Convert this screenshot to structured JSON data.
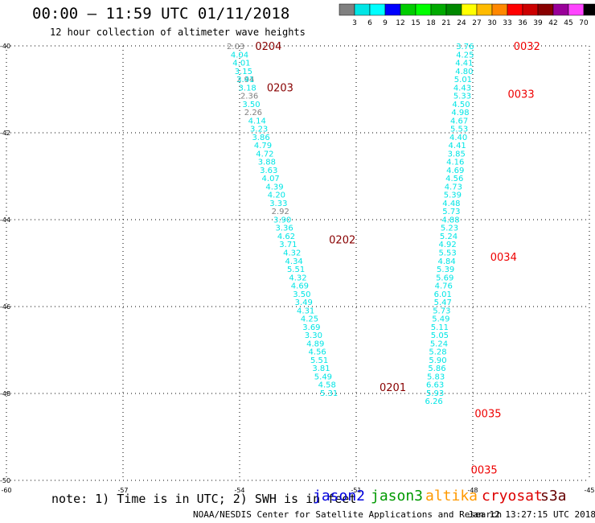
{
  "header": {
    "title": "00:00 – 11:59 UTC 01/11/2018",
    "subtitle": "12 hour collection of altimeter wave heights"
  },
  "colorbar": {
    "unit": "(ft)",
    "bins": [
      {
        "label": "",
        "color": "#808080"
      },
      {
        "label": "3",
        "color": "#00e5e5"
      },
      {
        "label": "6",
        "color": "#00ffff"
      },
      {
        "label": "9",
        "color": "#0000ff"
      },
      {
        "label": "12",
        "color": "#00cc00"
      },
      {
        "label": "15",
        "color": "#00ff00"
      },
      {
        "label": "18",
        "color": "#00aa00"
      },
      {
        "label": "21",
        "color": "#008800"
      },
      {
        "label": "24",
        "color": "#ffff00"
      },
      {
        "label": "27",
        "color": "#ffbb00"
      },
      {
        "label": "30",
        "color": "#ff8800"
      },
      {
        "label": "33",
        "color": "#ff0000"
      },
      {
        "label": "36",
        "color": "#cc0000"
      },
      {
        "label": "39",
        "color": "#880000"
      },
      {
        "label": "42",
        "color": "#990099"
      },
      {
        "label": "45",
        "color": "#ff44ff"
      },
      {
        "label": "70",
        "color": "#000000"
      }
    ]
  },
  "footer": {
    "note": "note: 1) Time is in UTC; 2) SWH is in feet",
    "satellites": [
      {
        "name": "jason2",
        "color": "#0000dd"
      },
      {
        "name": "jason3",
        "color": "#009900"
      },
      {
        "name": "altika",
        "color": "#ff9900"
      },
      {
        "name": "cryosat",
        "color": "#dd0000"
      },
      {
        "name": "s3a",
        "color": "#660000"
      }
    ],
    "credit": "NOAA/NESDIS Center for Satellite Applications and Research",
    "timestamp": "Jan 12 13:27:15 UTC 2018"
  },
  "colors": {
    "cyan": "#00e5e5",
    "gray": "#808080",
    "red": "#ee0000",
    "darkred": "#880000"
  },
  "chart_data": {
    "type": "scatter",
    "title": "00:00 – 11:59 UTC 01/11/2018",
    "subtitle": "12 hour collection of altimeter wave heights",
    "xlim": [
      -60,
      -45
    ],
    "ylim": [
      -50,
      -40
    ],
    "xticks": [
      -60,
      -57,
      -54,
      -51,
      -48,
      -45
    ],
    "yticks": [
      -40,
      -42,
      -44,
      -46,
      -48,
      -50
    ],
    "x_tick_labels": [
      "-60",
      "-57",
      "-54",
      "-51",
      "-48",
      "-45"
    ],
    "y_tick_labels": [
      "-40",
      "-42",
      "-44",
      "-46",
      "-48",
      "-50"
    ],
    "grid": "dotted",
    "series": [
      {
        "points": [
          {
            "x": -54.1,
            "y": -40.0,
            "v": "2.03",
            "c": "gray"
          },
          {
            "x": -54.0,
            "y": -40.19,
            "v": "4.04",
            "c": "cyan"
          },
          {
            "x": -53.95,
            "y": -40.38,
            "v": "4.01",
            "c": "cyan"
          },
          {
            "x": -53.9,
            "y": -40.57,
            "v": "3.15",
            "c": "cyan"
          },
          {
            "x": -53.85,
            "y": -40.76,
            "v": "2.94",
            "c": "gray"
          },
          {
            "x": -53.85,
            "y": -40.76,
            "v": "3.41",
            "c": "cyan"
          },
          {
            "x": -53.8,
            "y": -40.95,
            "v": "3.18",
            "c": "cyan"
          },
          {
            "x": -53.75,
            "y": -41.14,
            "v": "2.36",
            "c": "gray"
          },
          {
            "x": -53.7,
            "y": -41.33,
            "v": "3.50",
            "c": "cyan"
          },
          {
            "x": -53.65,
            "y": -41.52,
            "v": "2.26",
            "c": "gray"
          },
          {
            "x": -53.55,
            "y": -41.71,
            "v": "4.14",
            "c": "cyan"
          },
          {
            "x": -53.5,
            "y": -41.9,
            "v": "3.23",
            "c": "cyan"
          },
          {
            "x": -53.45,
            "y": -42.09,
            "v": "3.86",
            "c": "cyan"
          },
          {
            "x": -53.4,
            "y": -42.28,
            "v": "4.79",
            "c": "cyan"
          },
          {
            "x": -53.35,
            "y": -42.47,
            "v": "4.72",
            "c": "cyan"
          },
          {
            "x": -53.3,
            "y": -42.66,
            "v": "3.88",
            "c": "cyan"
          },
          {
            "x": -53.25,
            "y": -42.85,
            "v": "3.63",
            "c": "cyan"
          },
          {
            "x": -53.2,
            "y": -43.04,
            "v": "4.07",
            "c": "cyan"
          },
          {
            "x": -53.1,
            "y": -43.23,
            "v": "4.39",
            "c": "cyan"
          },
          {
            "x": -53.05,
            "y": -43.42,
            "v": "4.20",
            "c": "cyan"
          },
          {
            "x": -53.0,
            "y": -43.61,
            "v": "3.33",
            "c": "cyan"
          },
          {
            "x": -52.95,
            "y": -43.8,
            "v": "2.92",
            "c": "gray"
          },
          {
            "x": -52.9,
            "y": -43.99,
            "v": "3.90",
            "c": "cyan"
          },
          {
            "x": -52.85,
            "y": -44.18,
            "v": "3.36",
            "c": "cyan"
          },
          {
            "x": -52.8,
            "y": -44.37,
            "v": "4.62",
            "c": "cyan"
          },
          {
            "x": -52.75,
            "y": -44.56,
            "v": "3.71",
            "c": "cyan"
          },
          {
            "x": -52.65,
            "y": -44.75,
            "v": "4.32",
            "c": "cyan"
          },
          {
            "x": -52.6,
            "y": -44.94,
            "v": "4.34",
            "c": "cyan"
          },
          {
            "x": -52.55,
            "y": -45.13,
            "v": "5.51",
            "c": "cyan"
          },
          {
            "x": -52.5,
            "y": -45.32,
            "v": "4.32",
            "c": "cyan"
          },
          {
            "x": -52.45,
            "y": -45.51,
            "v": "4.69",
            "c": "cyan"
          },
          {
            "x": -52.4,
            "y": -45.7,
            "v": "3.50",
            "c": "cyan"
          },
          {
            "x": -52.35,
            "y": -45.89,
            "v": "3.49",
            "c": "cyan"
          },
          {
            "x": -52.3,
            "y": -46.08,
            "v": "4.31",
            "c": "cyan"
          },
          {
            "x": -52.2,
            "y": -46.27,
            "v": "4.25",
            "c": "cyan"
          },
          {
            "x": -52.15,
            "y": -46.46,
            "v": "3.69",
            "c": "cyan"
          },
          {
            "x": -52.1,
            "y": -46.65,
            "v": "3.30",
            "c": "cyan"
          },
          {
            "x": -52.05,
            "y": -46.84,
            "v": "4.89",
            "c": "cyan"
          },
          {
            "x": -52.0,
            "y": -47.03,
            "v": "4.56",
            "c": "cyan"
          },
          {
            "x": -51.95,
            "y": -47.22,
            "v": "5.51",
            "c": "cyan"
          },
          {
            "x": -51.9,
            "y": -47.41,
            "v": "3.81",
            "c": "cyan"
          },
          {
            "x": -51.85,
            "y": -47.6,
            "v": "5.49",
            "c": "cyan"
          },
          {
            "x": -51.75,
            "y": -47.79,
            "v": "4.58",
            "c": "cyan"
          },
          {
            "x": -51.7,
            "y": -47.98,
            "v": "5.31",
            "c": "cyan"
          }
        ]
      },
      {
        "points": [
          {
            "x": -48.2,
            "y": -40.0,
            "v": "3.76",
            "c": "cyan"
          },
          {
            "x": -48.2,
            "y": -40.19,
            "v": "4.25",
            "c": "cyan"
          },
          {
            "x": -48.22,
            "y": -40.38,
            "v": "4.41",
            "c": "cyan"
          },
          {
            "x": -48.22,
            "y": -40.57,
            "v": "4.80",
            "c": "cyan"
          },
          {
            "x": -48.25,
            "y": -40.76,
            "v": "5.01",
            "c": "cyan"
          },
          {
            "x": -48.27,
            "y": -40.95,
            "v": "4.43",
            "c": "cyan"
          },
          {
            "x": -48.27,
            "y": -41.14,
            "v": "5.33",
            "c": "cyan"
          },
          {
            "x": -48.3,
            "y": -41.33,
            "v": "4.50",
            "c": "cyan"
          },
          {
            "x": -48.32,
            "y": -41.52,
            "v": "4.98",
            "c": "cyan"
          },
          {
            "x": -48.35,
            "y": -41.71,
            "v": "4.67",
            "c": "cyan"
          },
          {
            "x": -48.35,
            "y": -41.9,
            "v": "5.53",
            "c": "cyan"
          },
          {
            "x": -48.37,
            "y": -42.09,
            "v": "4.40",
            "c": "cyan"
          },
          {
            "x": -48.4,
            "y": -42.28,
            "v": "4.41",
            "c": "cyan"
          },
          {
            "x": -48.42,
            "y": -42.47,
            "v": "3.85",
            "c": "cyan"
          },
          {
            "x": -48.45,
            "y": -42.66,
            "v": "4.16",
            "c": "cyan"
          },
          {
            "x": -48.45,
            "y": -42.85,
            "v": "4.69",
            "c": "cyan"
          },
          {
            "x": -48.47,
            "y": -43.04,
            "v": "4.56",
            "c": "cyan"
          },
          {
            "x": -48.5,
            "y": -43.23,
            "v": "4.73",
            "c": "cyan"
          },
          {
            "x": -48.52,
            "y": -43.42,
            "v": "5.39",
            "c": "cyan"
          },
          {
            "x": -48.55,
            "y": -43.61,
            "v": "4.48",
            "c": "cyan"
          },
          {
            "x": -48.55,
            "y": -43.8,
            "v": "5.73",
            "c": "cyan"
          },
          {
            "x": -48.57,
            "y": -43.99,
            "v": "4.88",
            "c": "cyan"
          },
          {
            "x": -48.6,
            "y": -44.18,
            "v": "5.23",
            "c": "cyan"
          },
          {
            "x": -48.62,
            "y": -44.37,
            "v": "5.24",
            "c": "cyan"
          },
          {
            "x": -48.65,
            "y": -44.56,
            "v": "4.92",
            "c": "cyan"
          },
          {
            "x": -48.65,
            "y": -44.75,
            "v": "5.53",
            "c": "cyan"
          },
          {
            "x": -48.67,
            "y": -44.94,
            "v": "4.84",
            "c": "cyan"
          },
          {
            "x": -48.7,
            "y": -45.13,
            "v": "5.39",
            "c": "cyan"
          },
          {
            "x": -48.72,
            "y": -45.32,
            "v": "5.69",
            "c": "cyan"
          },
          {
            "x": -48.75,
            "y": -45.51,
            "v": "4.76",
            "c": "cyan"
          },
          {
            "x": -48.77,
            "y": -45.7,
            "v": "6.01",
            "c": "cyan"
          },
          {
            "x": -48.77,
            "y": -45.89,
            "v": "5.47",
            "c": "cyan"
          },
          {
            "x": -48.8,
            "y": -46.08,
            "v": "5.73",
            "c": "cyan"
          },
          {
            "x": -48.82,
            "y": -46.27,
            "v": "5.49",
            "c": "cyan"
          },
          {
            "x": -48.85,
            "y": -46.46,
            "v": "5.11",
            "c": "cyan"
          },
          {
            "x": -48.85,
            "y": -46.65,
            "v": "5.05",
            "c": "cyan"
          },
          {
            "x": -48.87,
            "y": -46.84,
            "v": "5.24",
            "c": "cyan"
          },
          {
            "x": -48.9,
            "y": -47.03,
            "v": "5.28",
            "c": "cyan"
          },
          {
            "x": -48.9,
            "y": -47.22,
            "v": "5.90",
            "c": "cyan"
          },
          {
            "x": -48.92,
            "y": -47.41,
            "v": "5.86",
            "c": "cyan"
          },
          {
            "x": -48.95,
            "y": -47.6,
            "v": "5.83",
            "c": "cyan"
          },
          {
            "x": -48.97,
            "y": -47.79,
            "v": "6.63",
            "c": "cyan"
          },
          {
            "x": -48.97,
            "y": -47.98,
            "v": "5.93",
            "c": "cyan"
          },
          {
            "x": -49.0,
            "y": -48.17,
            "v": "6.26",
            "c": "cyan"
          }
        ]
      }
    ],
    "annotations": [
      {
        "text": "0204",
        "x": -53.6,
        "y": -40.0,
        "c": "darkred"
      },
      {
        "text": "0203",
        "x": -53.3,
        "y": -40.95,
        "c": "darkred"
      },
      {
        "text": "0202",
        "x": -51.7,
        "y": -44.45,
        "c": "darkred"
      },
      {
        "text": "0201",
        "x": -50.4,
        "y": -47.85,
        "c": "darkred"
      },
      {
        "text": "0032",
        "x": -46.95,
        "y": -40.0,
        "c": "red"
      },
      {
        "text": "0033",
        "x": -47.1,
        "y": -41.1,
        "c": "red"
      },
      {
        "text": "0034",
        "x": -47.55,
        "y": -44.85,
        "c": "red"
      },
      {
        "text": "0035",
        "x": -47.95,
        "y": -48.45,
        "c": "red"
      },
      {
        "text": "0035",
        "x": -48.05,
        "y": -49.75,
        "c": "red"
      }
    ]
  }
}
